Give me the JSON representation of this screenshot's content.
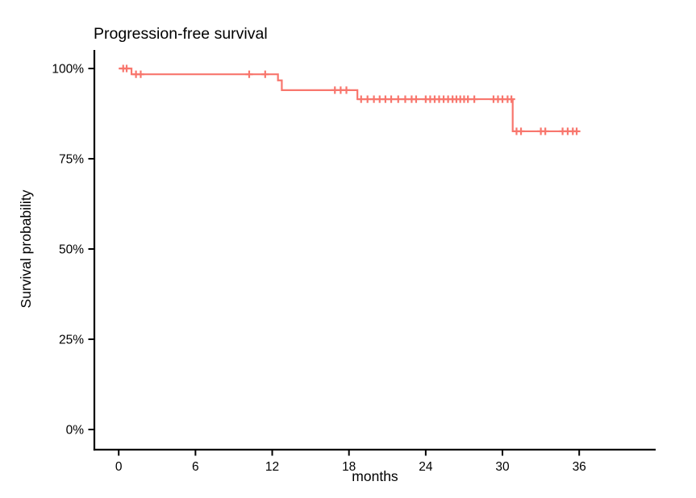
{
  "chart_data": {
    "type": "line",
    "variant": "kaplan_meier_step_curve",
    "title": "Progression-free survival",
    "xlabel": "months",
    "ylabel": "Survival probability",
    "xticks": [
      0,
      6,
      12,
      18,
      24,
      30,
      36
    ],
    "yticks": [
      0,
      25,
      50,
      75,
      100
    ],
    "ytick_suffix": "%",
    "xlim": [
      0,
      42
    ],
    "ylim": [
      0,
      100
    ],
    "grid": false,
    "legend_position": "none",
    "line_color": "#F8766D",
    "axis_color": "#000000",
    "steps": [
      {
        "time": 0,
        "survival": 100.0
      },
      {
        "time": 1.0,
        "survival": 98.4
      },
      {
        "time": 12.45,
        "survival": 96.7
      },
      {
        "time": 12.75,
        "survival": 94.0
      },
      {
        "time": 18.66,
        "survival": 91.5
      },
      {
        "time": 30.8,
        "survival": 82.6
      }
    ],
    "end_time": 35.9,
    "censor_marks": [
      {
        "time": 0.35,
        "survival": 100.0
      },
      {
        "time": 0.62,
        "survival": 100.0
      },
      {
        "time": 1.35,
        "survival": 98.4
      },
      {
        "time": 1.72,
        "survival": 98.4
      },
      {
        "time": 10.2,
        "survival": 98.4
      },
      {
        "time": 11.45,
        "survival": 98.4
      },
      {
        "time": 16.9,
        "survival": 94.0
      },
      {
        "time": 17.35,
        "survival": 94.0
      },
      {
        "time": 17.8,
        "survival": 94.0
      },
      {
        "time": 18.95,
        "survival": 91.5
      },
      {
        "time": 19.45,
        "survival": 91.5
      },
      {
        "time": 19.95,
        "survival": 91.5
      },
      {
        "time": 20.4,
        "survival": 91.5
      },
      {
        "time": 20.85,
        "survival": 91.5
      },
      {
        "time": 21.3,
        "survival": 91.5
      },
      {
        "time": 21.85,
        "survival": 91.5
      },
      {
        "time": 22.4,
        "survival": 91.5
      },
      {
        "time": 22.9,
        "survival": 91.5
      },
      {
        "time": 23.25,
        "survival": 91.5
      },
      {
        "time": 24.0,
        "survival": 91.5
      },
      {
        "time": 24.35,
        "survival": 91.5
      },
      {
        "time": 24.7,
        "survival": 91.5
      },
      {
        "time": 25.05,
        "survival": 91.5
      },
      {
        "time": 25.4,
        "survival": 91.5
      },
      {
        "time": 25.75,
        "survival": 91.5
      },
      {
        "time": 26.1,
        "survival": 91.5
      },
      {
        "time": 26.4,
        "survival": 91.5
      },
      {
        "time": 26.7,
        "survival": 91.5
      },
      {
        "time": 27.0,
        "survival": 91.5
      },
      {
        "time": 27.3,
        "survival": 91.5
      },
      {
        "time": 27.8,
        "survival": 91.5
      },
      {
        "time": 29.3,
        "survival": 91.5
      },
      {
        "time": 29.65,
        "survival": 91.5
      },
      {
        "time": 30.0,
        "survival": 91.5
      },
      {
        "time": 30.4,
        "survival": 91.5
      },
      {
        "time": 30.7,
        "survival": 91.5
      },
      {
        "time": 31.1,
        "survival": 82.6
      },
      {
        "time": 31.45,
        "survival": 82.6
      },
      {
        "time": 33.0,
        "survival": 82.6
      },
      {
        "time": 33.35,
        "survival": 82.6
      },
      {
        "time": 34.7,
        "survival": 82.6
      },
      {
        "time": 35.1,
        "survival": 82.6
      },
      {
        "time": 35.5,
        "survival": 82.6
      },
      {
        "time": 35.8,
        "survival": 82.6
      }
    ]
  }
}
